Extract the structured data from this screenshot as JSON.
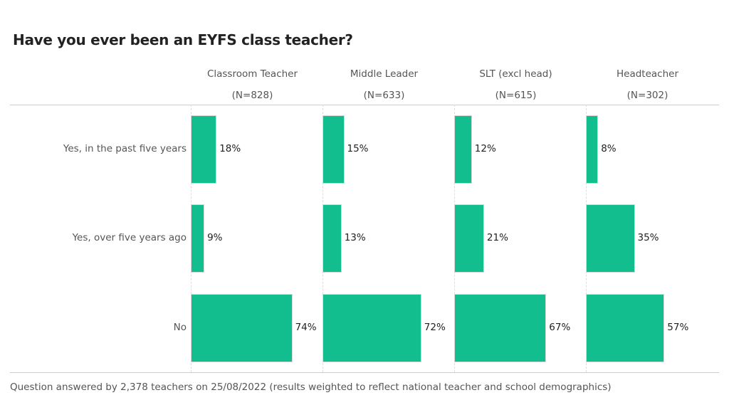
{
  "chart_data": {
    "type": "bar",
    "orientation": "horizontal",
    "title": "Have you ever been an EYFS class teacher?",
    "categories": [
      "Yes, in the past five years",
      "Yes, over five years ago",
      "No"
    ],
    "panels": [
      {
        "name": "Classroom Teacher",
        "n": "(N=828)",
        "values": [
          18,
          9,
          74
        ],
        "labels": [
          "18%",
          "9%",
          "74%"
        ]
      },
      {
        "name": "Middle Leader",
        "n": "(N=633)",
        "values": [
          15,
          13,
          72
        ],
        "labels": [
          "15%",
          "13%",
          "72%"
        ]
      },
      {
        "name": "SLT (excl head)",
        "n": "(N=615)",
        "values": [
          12,
          21,
          67
        ],
        "labels": [
          "12%",
          "21%",
          "67%"
        ]
      },
      {
        "name": "Headteacher",
        "n": "(N=302)",
        "values": [
          8,
          35,
          57
        ],
        "labels": [
          "8%",
          "35%",
          "57%"
        ]
      }
    ],
    "xlim": [
      0,
      100
    ],
    "unit": "%",
    "bar_color": "#12BD8E",
    "footnote": "Question answered by 2,378 teachers on 25/08/2022 (results weighted to reflect national teacher and school demographics)"
  }
}
